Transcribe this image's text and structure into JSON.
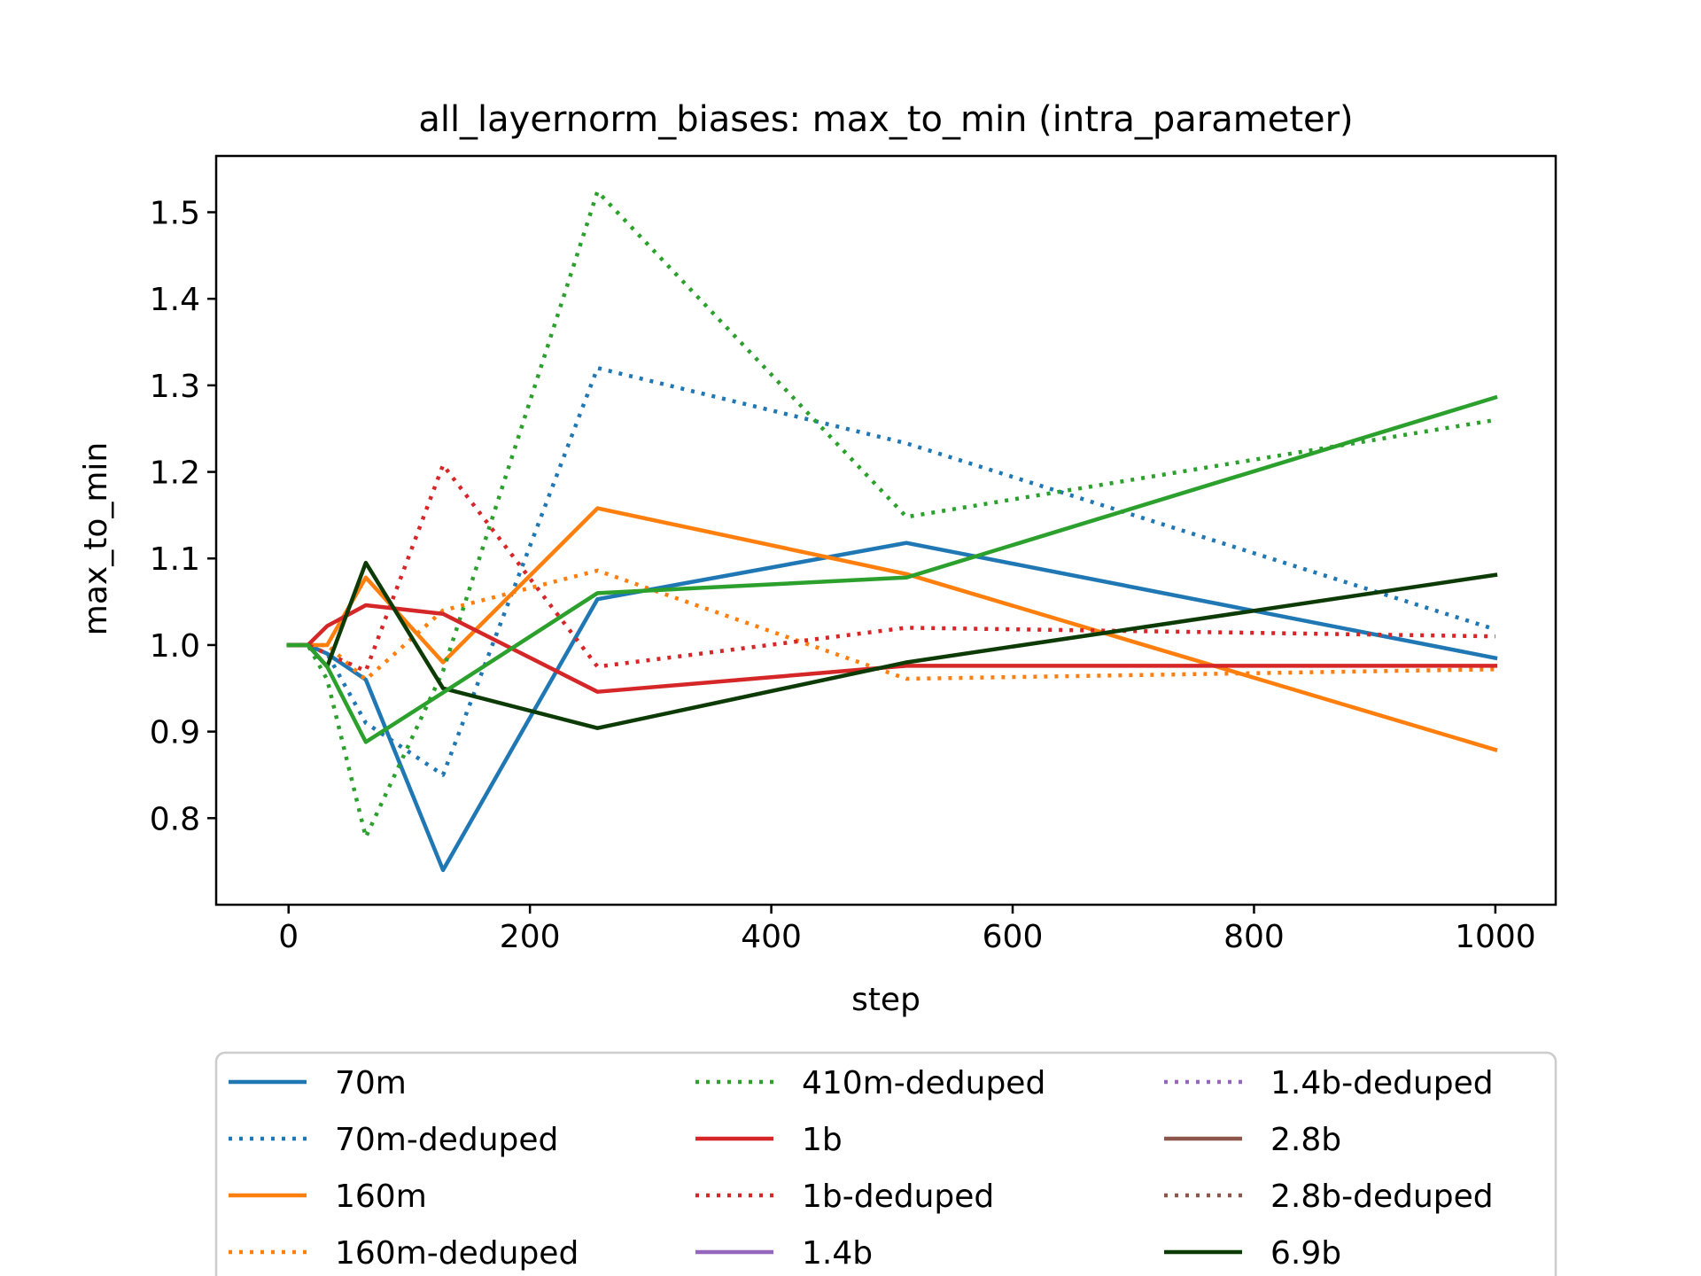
{
  "chart_data": {
    "type": "line",
    "title": "all_layernorm_biases: max_to_min (intra_parameter)",
    "xlabel": "step",
    "ylabel": "max_to_min",
    "xlim": [
      -60,
      1050
    ],
    "ylim": [
      0.7,
      1.565
    ],
    "xticks": [
      0,
      200,
      400,
      600,
      800,
      1000
    ],
    "xtick_labels": [
      "0",
      "200",
      "400",
      "600",
      "800",
      "1000"
    ],
    "yticks": [
      0.8,
      0.9,
      1.0,
      1.1,
      1.2,
      1.3,
      1.4,
      1.5
    ],
    "ytick_labels": [
      "0.8",
      "0.9",
      "1.0",
      "1.1",
      "1.2",
      "1.3",
      "1.4",
      "1.5"
    ],
    "grid": false,
    "legend_placement": "below plot, three columns",
    "series": [
      {
        "name": "70m",
        "color": "#1f77b4",
        "style": "solid",
        "x": [
          0,
          16,
          32,
          64,
          128,
          256,
          512,
          1000
        ],
        "y": [
          1.0,
          1.0,
          0.99,
          0.96,
          0.74,
          1.053,
          1.118,
          0.985
        ]
      },
      {
        "name": "70m-deduped",
        "color": "#1f77b4",
        "style": "dotted",
        "x": [
          0,
          16,
          32,
          64,
          128,
          256,
          512,
          1000
        ],
        "y": [
          1.0,
          1.0,
          0.99,
          0.91,
          0.85,
          1.32,
          1.233,
          1.018
        ]
      },
      {
        "name": "160m",
        "color": "#ff7f0e",
        "style": "solid",
        "x": [
          0,
          16,
          32,
          64,
          128,
          256,
          512,
          1000
        ],
        "y": [
          1.0,
          1.0,
          1.0,
          1.078,
          0.98,
          1.158,
          1.082,
          0.879
        ]
      },
      {
        "name": "160m-deduped",
        "color": "#ff7f0e",
        "style": "dotted",
        "x": [
          0,
          16,
          32,
          64,
          128,
          256,
          512,
          1000
        ],
        "y": [
          1.0,
          1.0,
          1.0,
          0.96,
          1.04,
          1.086,
          0.961,
          0.972
        ]
      },
      {
        "name": "410m-deduped",
        "color": "#2ca02c",
        "style": "dotted",
        "x": [
          0,
          16,
          32,
          64,
          128,
          256,
          512,
          1000
        ],
        "y": [
          1.0,
          1.0,
          0.96,
          0.778,
          0.97,
          1.524,
          1.148,
          1.26
        ]
      },
      {
        "name": "1b",
        "color": "#d62728",
        "style": "solid",
        "x": [
          0,
          16,
          32,
          64,
          128,
          256,
          512,
          1000
        ],
        "y": [
          1.0,
          1.0,
          1.022,
          1.046,
          1.036,
          0.946,
          0.976,
          0.976
        ]
      },
      {
        "name": "1b-deduped",
        "color": "#d62728",
        "style": "dotted",
        "x": [
          0,
          16,
          32,
          64,
          128,
          256,
          512,
          1000
        ],
        "y": [
          1.0,
          1.0,
          0.99,
          0.97,
          1.208,
          0.975,
          1.02,
          1.01
        ]
      },
      {
        "name": "1.4b",
        "color": "#9467bd",
        "style": "solid",
        "x": [],
        "y": []
      },
      {
        "name": "1.4b-deduped",
        "color": "#9467bd",
        "style": "dotted",
        "x": [],
        "y": []
      },
      {
        "name": "2.8b",
        "color": "#8c564b",
        "style": "solid",
        "x": [],
        "y": []
      },
      {
        "name": "2.8b-deduped",
        "color": "#8c564b",
        "style": "dotted",
        "x": [],
        "y": []
      },
      {
        "name": "6.9b",
        "color": "#0d3b06",
        "style": "solid",
        "x": [
          0,
          16,
          32,
          64,
          128,
          256,
          512,
          1000
        ],
        "y": [
          1.0,
          1.0,
          0.975,
          1.095,
          0.95,
          0.904,
          0.98,
          1.081
        ]
      },
      {
        "name": "",
        "color": "#2ca02c",
        "style": "solid",
        "legend": false,
        "x": [
          0,
          16,
          32,
          64,
          128,
          256,
          512,
          1000
        ],
        "y": [
          1.0,
          1.0,
          0.975,
          0.888,
          0.945,
          1.06,
          1.078,
          1.286
        ]
      }
    ]
  }
}
